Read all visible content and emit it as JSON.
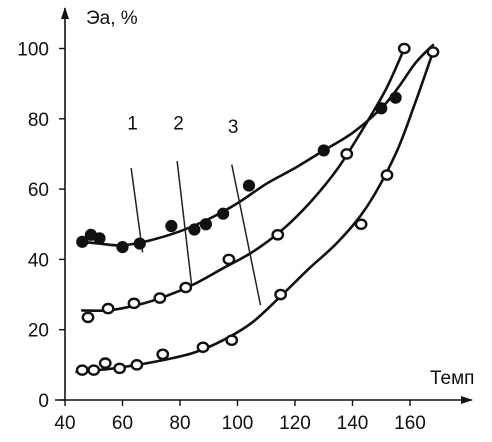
{
  "chart_data": {
    "type": "scatter",
    "title": "",
    "ylabel": "Эа, %",
    "xlabel": "Темп",
    "xlim": [
      40,
      170
    ],
    "ylim": [
      0,
      105
    ],
    "x_ticks": [
      40,
      60,
      80,
      100,
      120,
      140,
      160
    ],
    "y_ticks": [
      0,
      20,
      40,
      60,
      80,
      100
    ],
    "x_tick_labels": [
      "40",
      "60",
      "80",
      "100",
      "120",
      "140",
      "160"
    ],
    "y_tick_labels": [
      "0",
      "20",
      "40",
      "60",
      "80",
      "100"
    ],
    "grid": false,
    "legend": "none",
    "series": [
      {
        "label": "1",
        "marker": "filled-circle",
        "points": [
          [
            46,
            45
          ],
          [
            49,
            47
          ],
          [
            52,
            46
          ],
          [
            60,
            43.5
          ],
          [
            66,
            44.5
          ],
          [
            77,
            49.5
          ],
          [
            85,
            48.5
          ],
          [
            89,
            50
          ],
          [
            95,
            53
          ],
          [
            104,
            61
          ],
          [
            130,
            71
          ],
          [
            150,
            83
          ],
          [
            155,
            86
          ]
        ],
        "fit": [
          [
            46,
            45
          ],
          [
            52,
            44.5
          ],
          [
            60,
            44
          ],
          [
            70,
            45.5
          ],
          [
            80,
            48
          ],
          [
            90,
            51.5
          ],
          [
            100,
            56
          ],
          [
            110,
            61.5
          ],
          [
            120,
            66
          ],
          [
            130,
            71
          ],
          [
            140,
            76
          ],
          [
            150,
            83
          ],
          [
            156,
            89
          ],
          [
            162,
            96
          ],
          [
            168,
            101
          ]
        ]
      },
      {
        "label": "2",
        "marker": "open-circle",
        "points": [
          [
            48,
            23.5
          ],
          [
            55,
            26
          ],
          [
            64,
            27.5
          ],
          [
            73,
            29
          ],
          [
            82,
            32
          ],
          [
            97,
            40
          ],
          [
            114,
            47
          ],
          [
            138,
            70
          ],
          [
            158,
            100
          ]
        ],
        "fit": [
          [
            46,
            25.5
          ],
          [
            55,
            25.5
          ],
          [
            65,
            27
          ],
          [
            75,
            29.5
          ],
          [
            85,
            33
          ],
          [
            95,
            37.5
          ],
          [
            105,
            42
          ],
          [
            115,
            48
          ],
          [
            125,
            56
          ],
          [
            135,
            66
          ],
          [
            145,
            79
          ],
          [
            152,
            89
          ],
          [
            158,
            100
          ]
        ]
      },
      {
        "label": "3",
        "marker": "open-circle",
        "points": [
          [
            46,
            8.5
          ],
          [
            50,
            8.5
          ],
          [
            54,
            10.5
          ],
          [
            59,
            9
          ],
          [
            65,
            10
          ],
          [
            74,
            13
          ],
          [
            88,
            15
          ],
          [
            98,
            17
          ],
          [
            115,
            30
          ],
          [
            143,
            50
          ],
          [
            152,
            64
          ],
          [
            168,
            99
          ]
        ],
        "fit": [
          [
            44,
            8
          ],
          [
            55,
            8.8
          ],
          [
            65,
            10
          ],
          [
            75,
            11.5
          ],
          [
            85,
            13.5
          ],
          [
            95,
            17
          ],
          [
            105,
            22
          ],
          [
            115,
            29.5
          ],
          [
            125,
            37.5
          ],
          [
            135,
            45
          ],
          [
            145,
            55
          ],
          [
            155,
            70
          ],
          [
            162,
            85
          ],
          [
            168,
            99
          ]
        ]
      }
    ],
    "annotations": [
      "1",
      "2",
      "3"
    ]
  }
}
